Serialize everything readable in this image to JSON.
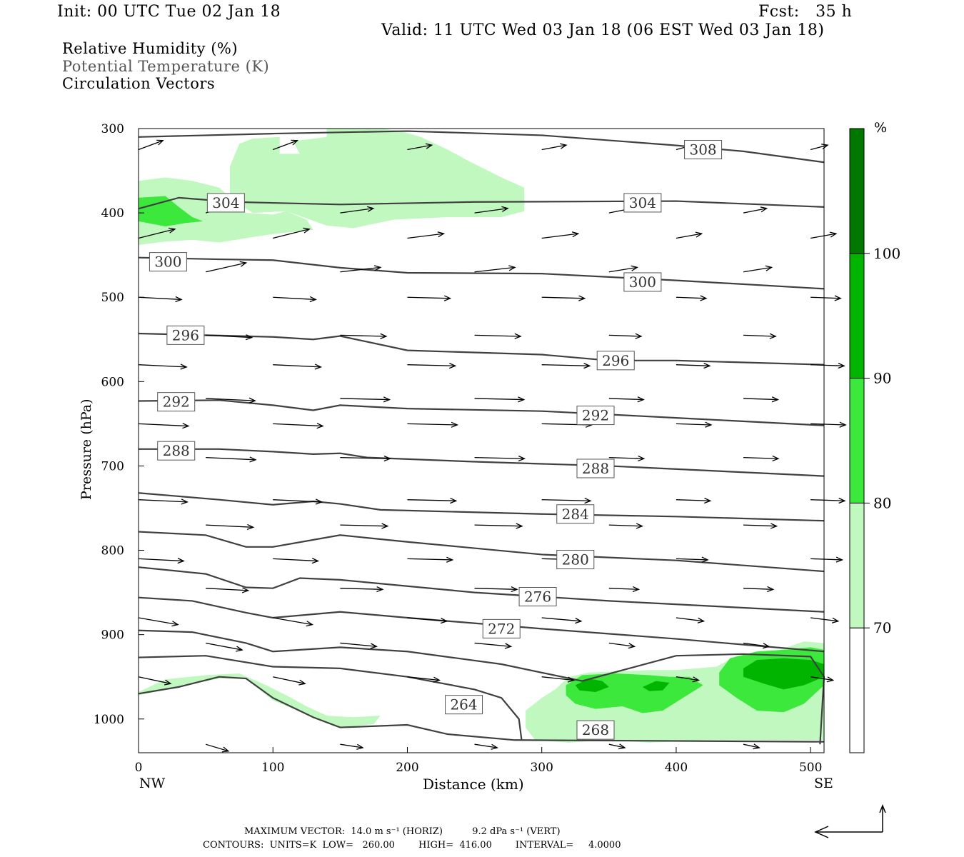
{
  "header": {
    "init": "Init: 00 UTC Tue 02 Jan 18",
    "fcst": "Fcst:   35 h",
    "valid": "Valid: 11 UTC Wed 03 Jan 18 (06 EST Wed 03 Jan 18)",
    "field1": "Relative Humidity (%)",
    "field2": "Potential Temperature (K)",
    "field3": "Circulation Vectors"
  },
  "footer": {
    "max_vector": "MAXIMUM VECTOR:  14.0 m s⁻¹ (HORIZ)          9.2 dPa s⁻¹ (VERT)",
    "contours": "CONTOURS:  UNITS=K  LOW=   260.00        HIGH=  416.00        INTERVAL=     4.0000"
  },
  "colors": {
    "rh70": "#c0f8c0",
    "rh80": "#3ce83c",
    "rh90": "#00b400",
    "rh100": "#007800",
    "contour": "#404040",
    "axis": "#000000"
  },
  "chart_data": {
    "type": "cross-section",
    "xlabel": "Distance (km)",
    "ylabel": "Pressure (hPa)",
    "xlim": [
      0,
      510
    ],
    "ylim": [
      300,
      1040
    ],
    "y_log_scale": false,
    "x_ticks": [
      0,
      100,
      200,
      300,
      400,
      500
    ],
    "y_ticks": [
      300,
      400,
      500,
      600,
      700,
      800,
      900,
      1000
    ],
    "x_left_label": "NW",
    "x_right_label": "SE",
    "colorbar": {
      "unit": "%",
      "levels": [
        70,
        80,
        90,
        100
      ],
      "labels": [
        "70",
        "80",
        "90",
        "100"
      ],
      "colors": [
        "#ffffff",
        "#c0f8c0",
        "#3ce83c",
        "#00b400",
        "#007800"
      ]
    },
    "theta_contours": [
      {
        "label": "308",
        "label_at": [
          420,
          325
        ],
        "points": [
          [
            0,
            310
          ],
          [
            100,
            306
          ],
          [
            200,
            303
          ],
          [
            300,
            308
          ],
          [
            400,
            320
          ],
          [
            450,
            327
          ],
          [
            510,
            340
          ]
        ]
      },
      {
        "label": "304",
        "label_at": [
          65,
          388
        ],
        "points": [
          [
            0,
            395
          ],
          [
            30,
            382
          ],
          [
            70,
            387
          ],
          [
            150,
            390
          ],
          [
            250,
            387
          ],
          [
            400,
            386
          ],
          [
            510,
            393
          ]
        ]
      },
      {
        "label": "304",
        "label_at": [
          375,
          388
        ],
        "points": []
      },
      {
        "label": "300",
        "label_at": [
          22,
          458
        ],
        "points": [
          [
            0,
            453
          ],
          [
            60,
            455
          ],
          [
            100,
            456
          ],
          [
            150,
            465
          ],
          [
            200,
            471
          ],
          [
            300,
            472
          ],
          [
            400,
            480
          ],
          [
            510,
            490
          ]
        ]
      },
      {
        "label": "300",
        "label_at": [
          375,
          482
        ],
        "points": []
      },
      {
        "label": "296",
        "label_at": [
          35,
          545
        ],
        "points": [
          [
            0,
            543
          ],
          [
            50,
            545
          ],
          [
            100,
            547
          ],
          [
            130,
            550
          ],
          [
            150,
            546
          ],
          [
            200,
            563
          ],
          [
            300,
            568
          ],
          [
            350,
            575
          ],
          [
            400,
            575
          ],
          [
            510,
            580
          ]
        ]
      },
      {
        "label": "296",
        "label_at": [
          355,
          575
        ],
        "points": []
      },
      {
        "label": "292",
        "label_at": [
          28,
          624
        ],
        "points": [
          [
            0,
            623
          ],
          [
            60,
            622
          ],
          [
            100,
            628
          ],
          [
            130,
            634
          ],
          [
            150,
            628
          ],
          [
            200,
            632
          ],
          [
            300,
            635
          ],
          [
            400,
            643
          ],
          [
            510,
            652
          ]
        ]
      },
      {
        "label": "292",
        "label_at": [
          340,
          640
        ],
        "points": []
      },
      {
        "label": "288",
        "label_at": [
          28,
          682
        ],
        "points": [
          [
            0,
            680
          ],
          [
            60,
            680
          ],
          [
            100,
            683
          ],
          [
            130,
            686
          ],
          [
            150,
            685
          ],
          [
            170,
            690
          ],
          [
            250,
            695
          ],
          [
            350,
            700
          ],
          [
            510,
            712
          ]
        ]
      },
      {
        "label": "288",
        "label_at": [
          340,
          703
        ],
        "points": []
      },
      {
        "label": "284",
        "label_at": [
          325,
          757
        ],
        "points": [
          [
            0,
            732
          ],
          [
            60,
            740
          ],
          [
            100,
            746
          ],
          [
            130,
            742
          ],
          [
            150,
            745
          ],
          [
            180,
            752
          ],
          [
            300,
            757
          ],
          [
            400,
            760
          ],
          [
            510,
            765
          ]
        ]
      },
      {
        "label": "280",
        "label_at": [
          325,
          811
        ],
        "points": [
          [
            0,
            778
          ],
          [
            50,
            782
          ],
          [
            80,
            796
          ],
          [
            100,
            796
          ],
          [
            150,
            782
          ],
          [
            200,
            790
          ],
          [
            300,
            805
          ],
          [
            400,
            812
          ],
          [
            510,
            825
          ]
        ]
      },
      {
        "label": "276",
        "label_at": [
          297,
          855
        ],
        "points": [
          [
            0,
            820
          ],
          [
            50,
            828
          ],
          [
            80,
            844
          ],
          [
            100,
            845
          ],
          [
            120,
            833
          ],
          [
            150,
            835
          ],
          [
            250,
            850
          ],
          [
            350,
            860
          ],
          [
            510,
            873
          ]
        ]
      },
      {
        "label": "272",
        "label_at": [
          270,
          893
        ],
        "points": [
          [
            0,
            856
          ],
          [
            40,
            860
          ],
          [
            80,
            874
          ],
          [
            100,
            880
          ],
          [
            150,
            873
          ],
          [
            200,
            880
          ],
          [
            300,
            893
          ],
          [
            400,
            905
          ],
          [
            510,
            920
          ]
        ]
      },
      {
        "label": "268",
        "label_at": [
          340,
          1013
        ],
        "points": [
          [
            0,
            895
          ],
          [
            40,
            897
          ],
          [
            80,
            910
          ],
          [
            100,
            920
          ],
          [
            150,
            915
          ],
          [
            200,
            920
          ],
          [
            270,
            935
          ],
          [
            330,
            955
          ],
          [
            400,
            925
          ],
          [
            450,
            923
          ],
          [
            500,
            926
          ],
          [
            510,
            950
          ],
          [
            507,
            1030
          ]
        ]
      },
      {
        "label": "264",
        "label_at": [
          242,
          983
        ],
        "points": [
          [
            0,
            927
          ],
          [
            50,
            925
          ],
          [
            100,
            938
          ],
          [
            150,
            940
          ],
          [
            200,
            950
          ],
          [
            250,
            965
          ],
          [
            270,
            975
          ],
          [
            283,
            1000
          ],
          [
            285,
            1025
          ]
        ]
      },
      {
        "label": "",
        "label_at": null,
        "points": [
          [
            0,
            970
          ],
          [
            30,
            962
          ],
          [
            60,
            950
          ],
          [
            80,
            952
          ],
          [
            100,
            975
          ],
          [
            130,
            998
          ],
          [
            150,
            1010
          ],
          [
            200,
            1007
          ],
          [
            230,
            1018
          ],
          [
            280,
            1025
          ],
          [
            510,
            1027
          ]
        ]
      }
    ]
  }
}
